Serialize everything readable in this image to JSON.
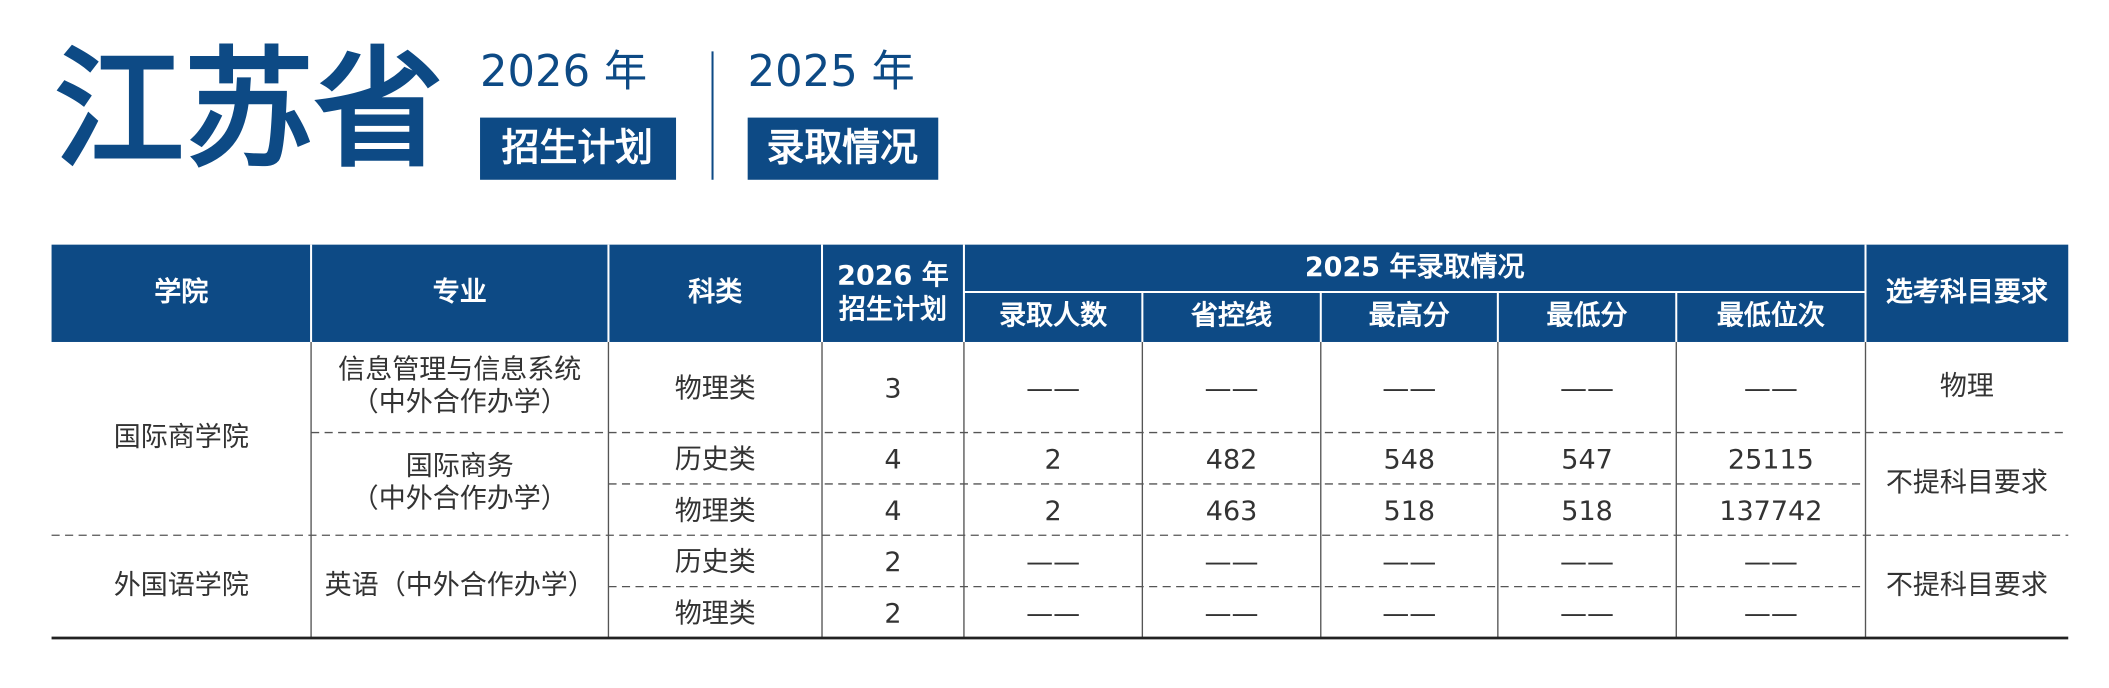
{
  "header": {
    "province": "江苏省",
    "plan_year": "2026 年",
    "plan_label": "招生计划",
    "admit_year": "2025 年",
    "admit_label": "录取情况"
  },
  "table": {
    "headers": {
      "college": "学院",
      "major": "专业",
      "category": "科类",
      "plan": [
        "2026 年",
        "招生计划"
      ],
      "admission_group": "2025 年录取情况",
      "admission": [
        "录取人数",
        "省控线",
        "最高分",
        "最低分",
        "最低位次"
      ],
      "subject": "选考科目要求"
    },
    "colleges": [
      {
        "name": "国际商学院",
        "majors": [
          {
            "name": [
              "信息管理与信息系统",
              "（中外合作办学）"
            ],
            "subject": "物理",
            "rows": [
              {
                "category": "物理类",
                "plan": 3,
                "admission": [
                  "——",
                  "——",
                  "——",
                  "——",
                  "——"
                ]
              }
            ]
          },
          {
            "name": [
              "国际商务",
              "（中外合作办学）"
            ],
            "subject": "不提科目要求",
            "rows": [
              {
                "category": "历史类",
                "plan": 4,
                "admission": [
                  2,
                  482,
                  548,
                  547,
                  25115
                ]
              },
              {
                "category": "物理类",
                "plan": 4,
                "admission": [
                  2,
                  463,
                  518,
                  518,
                  137742
                ]
              }
            ]
          }
        ]
      },
      {
        "name": "外国语学院",
        "majors": [
          {
            "name": [
              "英语（中外合作办学）"
            ],
            "subject": "不提科目要求",
            "rows": [
              {
                "category": "历史类",
                "plan": 2,
                "admission": [
                  "——",
                  "——",
                  "——",
                  "——",
                  "——"
                ]
              },
              {
                "category": "物理类",
                "plan": 2,
                "admission": [
                  "——",
                  "——",
                  "——",
                  "——",
                  "——"
                ]
              }
            ]
          }
        ]
      }
    ]
  }
}
